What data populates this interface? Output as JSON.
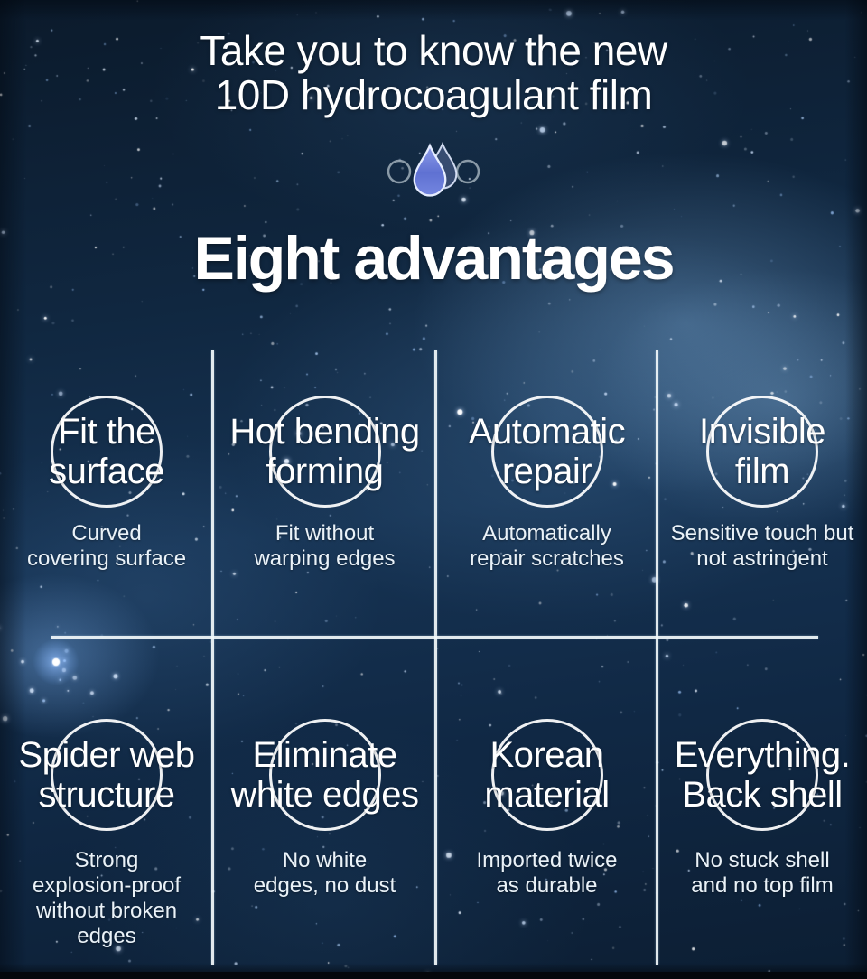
{
  "header": {
    "title_lines": [
      "Take you to know the new",
      "10D hydrocoagulant film"
    ],
    "icon": "water-drop-icon",
    "section_heading": "Eight advantages"
  },
  "colors": {
    "drop_fill_top": "#8d9ce9",
    "drop_fill_mid": "#5f71d2",
    "divider": "#f1f8fa",
    "sky_base": "#122a44"
  },
  "advantages": [
    {
      "title": [
        "Fit the",
        "surface"
      ],
      "description": [
        "Curved",
        "covering surface"
      ]
    },
    {
      "title": [
        "Hot bending",
        "forming"
      ],
      "description": [
        "Fit without",
        "warping edges"
      ]
    },
    {
      "title": [
        "Automatic",
        "repair"
      ],
      "description": [
        "Automatically",
        "repair scratches"
      ]
    },
    {
      "title": [
        "Invisible",
        "film"
      ],
      "description": [
        "Sensitive touch but",
        "not astringent"
      ]
    },
    {
      "title": [
        "Spider web",
        "structure"
      ],
      "description": [
        "Strong",
        "explosion-proof",
        "without broken",
        "edges"
      ]
    },
    {
      "title": [
        "Eliminate",
        "white edges"
      ],
      "description": [
        "No white",
        "edges, no dust"
      ]
    },
    {
      "title": [
        "Korean",
        "material"
      ],
      "description": [
        "Imported twice",
        "as durable"
      ]
    },
    {
      "title": [
        "Everything.",
        "Back shell"
      ],
      "description": [
        "No stuck shell",
        "and no top film"
      ]
    }
  ]
}
